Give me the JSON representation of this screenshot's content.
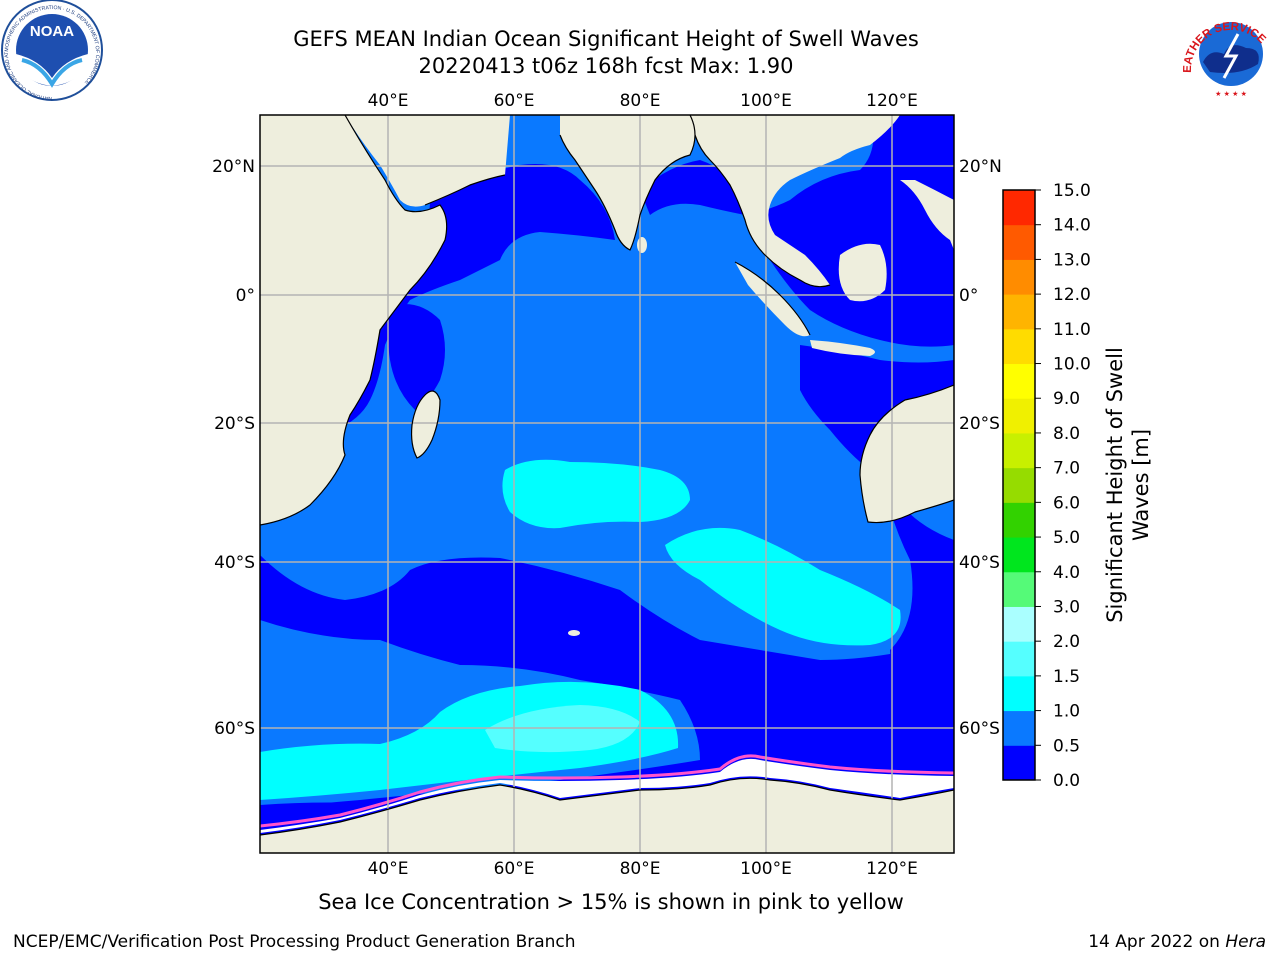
{
  "title": {
    "line1": "GEFS MEAN Indian Ocean Significant Height of Swell Waves",
    "line2": "20220413 t06z 168h fcst   Max: 1.90"
  },
  "map": {
    "lon_labels": [
      "40°E",
      "60°E",
      "80°E",
      "100°E",
      "120°E"
    ],
    "lat_labels": [
      "20°N",
      "0°",
      "20°S",
      "40°S",
      "60°S"
    ],
    "colors": {
      "land": "#eeeedd",
      "ocean_0_05": "#0000ff",
      "ocean_05_1": "#0a79ff",
      "ocean_1_15": "#00ffff",
      "ocean_15_2": "#55ffff",
      "ice": "#ffffff",
      "grid": "#b4b4b4"
    }
  },
  "colorbar": {
    "title_line1": "Significant Height of Swell",
    "title_line2": "Waves [m]",
    "tick_labels": [
      "0.0",
      "0.5",
      "1.0",
      "1.5",
      "2.0",
      "3.0",
      "4.0",
      "5.0",
      "6.0",
      "7.0",
      "8.0",
      "9.0",
      "10.0",
      "11.0",
      "12.0",
      "13.0",
      "14.0",
      "15.0"
    ],
    "segment_colors": [
      "#0000ff",
      "#0a79ff",
      "#00ffff",
      "#55ffff",
      "#aaffff",
      "#55fa78",
      "#00e61e",
      "#32d200",
      "#96dc00",
      "#c8f000",
      "#f0f000",
      "#ffff00",
      "#ffdc00",
      "#ffb400",
      "#ff8c00",
      "#ff5a00",
      "#ff2800",
      "#ff0000"
    ]
  },
  "caption": "Sea Ice Concentration > 15% is shown in pink to yellow",
  "footer": {
    "left": "NCEP/EMC/Verification Post Processing Product Generation Branch",
    "right_prefix": "14 Apr 2022 on ",
    "right_host": "Hera"
  },
  "logos": {
    "left": "noaa-logo",
    "left_text": "NOAA",
    "left_ring_text": "NATIONAL OCEANIC AND ATMOSPHERIC ADMINISTRATION · U.S. DEPARTMENT OF COMMERCE",
    "right": "national-weather-service-logo",
    "right_ring_text": "NATIONAL WEATHER SERVICE"
  }
}
